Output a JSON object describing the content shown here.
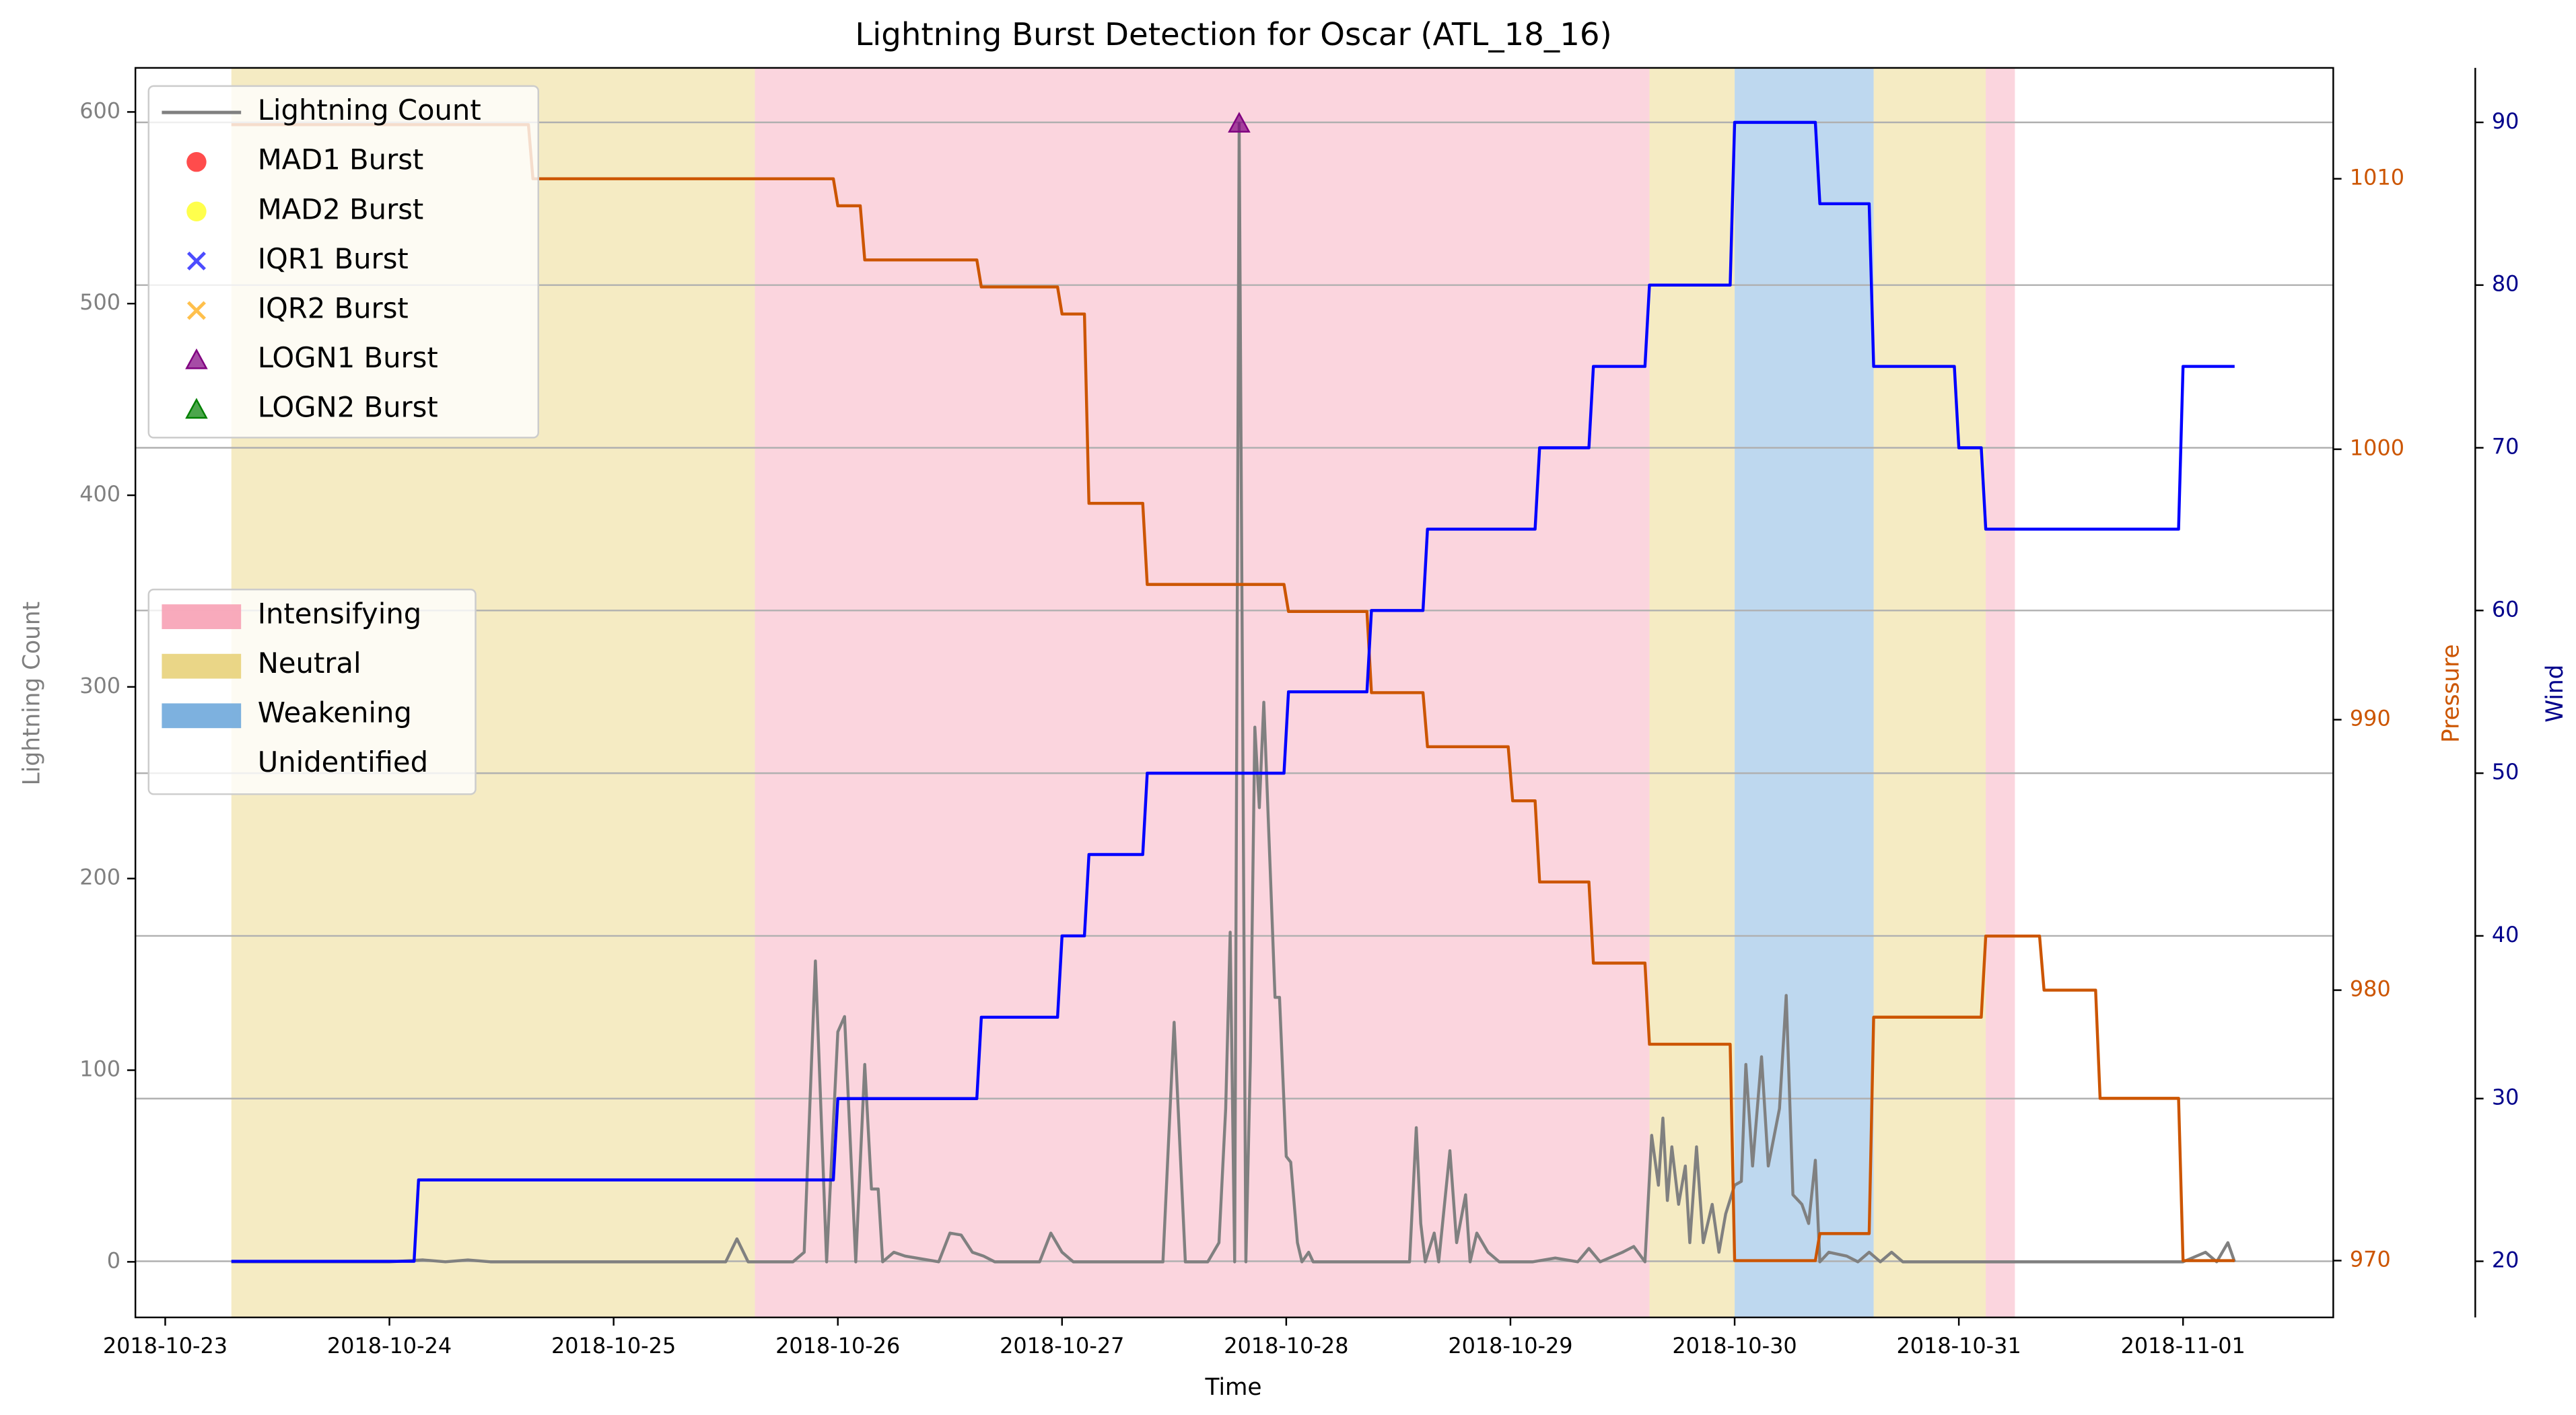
{
  "chart_data": {
    "type": "line",
    "title": "Lightning Burst Detection for Oscar (ATL_18_16)",
    "xlabel": "Time",
    "ylabel": "Lightning Count",
    "y2label": "Pressure",
    "y3label": "Wind",
    "xlim": [
      -0.133,
      9.67
    ],
    "xticks": [
      {
        "value": 0,
        "label": "2018-10-23"
      },
      {
        "value": 1,
        "label": "2018-10-24"
      },
      {
        "value": 2,
        "label": "2018-10-25"
      },
      {
        "value": 3,
        "label": "2018-10-26"
      },
      {
        "value": 4,
        "label": "2018-10-27"
      },
      {
        "value": 5,
        "label": "2018-10-28"
      },
      {
        "value": 6,
        "label": "2018-10-29"
      },
      {
        "value": 7,
        "label": "2018-10-30"
      },
      {
        "value": 8,
        "label": "2018-10-31"
      },
      {
        "value": 9,
        "label": "2018-11-01"
      }
    ],
    "ylim": [
      -29,
      623
    ],
    "yticks": [
      0,
      100,
      200,
      300,
      400,
      500,
      600
    ],
    "y2lim": [
      967.9,
      1014.1
    ],
    "y2ticks": [
      970,
      980,
      990,
      1000,
      1010
    ],
    "y3lim": [
      16.55,
      93.35
    ],
    "y3ticks": [
      20,
      30,
      40,
      50,
      60,
      70,
      80,
      90
    ],
    "grid": "y3",
    "series": [
      {
        "name": "Lightning Count",
        "color": "#808080",
        "axis": "y",
        "x": [
          0.295,
          1.0,
          1.15,
          1.25,
          1.35,
          1.45,
          2.5,
          2.55,
          2.6,
          2.8,
          2.85,
          2.9,
          2.95,
          3.0,
          3.03,
          3.08,
          3.12,
          3.15,
          3.18,
          3.2,
          3.25,
          3.3,
          3.45,
          3.5,
          3.55,
          3.6,
          3.65,
          3.7,
          3.9,
          3.95,
          4.0,
          4.05,
          4.45,
          4.5,
          4.55,
          4.65,
          4.7,
          4.73,
          4.75,
          4.77,
          4.79,
          4.82,
          4.84,
          4.86,
          4.88,
          4.9,
          4.93,
          4.95,
          4.97,
          5.0,
          5.02,
          5.05,
          5.07,
          5.1,
          5.12,
          5.55,
          5.58,
          5.6,
          5.62,
          5.66,
          5.68,
          5.73,
          5.76,
          5.8,
          5.82,
          5.85,
          5.9,
          5.95,
          6.1,
          6.2,
          6.3,
          6.35,
          6.4,
          6.5,
          6.55,
          6.6,
          6.63,
          6.66,
          6.68,
          6.7,
          6.72,
          6.75,
          6.78,
          6.8,
          6.83,
          6.86,
          6.9,
          6.93,
          6.96,
          7.0,
          7.03,
          7.05,
          7.08,
          7.12,
          7.15,
          7.2,
          7.23,
          7.26,
          7.3,
          7.33,
          7.36,
          7.38,
          7.42,
          7.5,
          7.55,
          7.6,
          7.65,
          7.7,
          7.75,
          9.0,
          9.1,
          9.15,
          9.2,
          9.23
        ],
        "values": [
          0,
          0,
          1,
          0,
          1,
          0,
          0,
          12,
          0,
          0,
          5,
          157,
          0,
          120,
          128,
          0,
          103,
          38,
          38,
          0,
          5,
          3,
          0,
          15,
          14,
          5,
          3,
          0,
          0,
          15,
          5,
          0,
          0,
          125,
          0,
          0,
          10,
          80,
          172,
          0,
          594,
          0,
          105,
          279,
          237,
          292,
          200,
          138,
          138,
          55,
          52,
          10,
          0,
          5,
          0,
          0,
          70,
          20,
          0,
          15,
          0,
          58,
          10,
          35,
          0,
          15,
          5,
          0,
          0,
          2,
          0,
          7,
          0,
          5,
          8,
          0,
          66,
          40,
          75,
          32,
          60,
          30,
          50,
          10,
          60,
          10,
          30,
          5,
          25,
          40,
          42,
          103,
          50,
          107,
          50,
          80,
          139,
          35,
          30,
          20,
          53,
          0,
          5,
          3,
          0,
          5,
          0,
          5,
          0,
          0,
          5,
          0,
          10,
          0
        ]
      },
      {
        "name": "Pressure",
        "color": "#cc5500",
        "axis": "y2",
        "x": [
          0.295,
          1.62,
          1.64,
          2.98,
          3.0,
          3.1,
          3.12,
          3.62,
          3.64,
          3.98,
          4.0,
          4.1,
          4.12,
          4.36,
          4.38,
          4.99,
          5.01,
          5.36,
          5.38,
          5.61,
          5.63,
          5.99,
          6.01,
          6.11,
          6.13,
          6.35,
          6.37,
          6.6,
          6.62,
          6.98,
          7.0,
          7.36,
          7.38,
          7.6,
          7.62,
          8.1,
          8.12,
          8.36,
          8.38,
          8.61,
          8.63,
          8.98,
          9.0,
          9.23
        ],
        "values": [
          1012,
          1012,
          1010,
          1010,
          1009,
          1009,
          1007,
          1007,
          1006,
          1006,
          1005,
          1005,
          998,
          998,
          995,
          995,
          994,
          994,
          991,
          991,
          989,
          989,
          987,
          987,
          984,
          984,
          981,
          981,
          978,
          978,
          970,
          970,
          971,
          971,
          979,
          979,
          982,
          982,
          980,
          980,
          976,
          976,
          970,
          970
        ]
      },
      {
        "name": "Wind",
        "color": "#0000ff",
        "axis": "y3",
        "x": [
          0.295,
          1.11,
          1.13,
          2.98,
          3.0,
          3.62,
          3.64,
          3.98,
          4.0,
          4.1,
          4.12,
          4.36,
          4.38,
          4.99,
          5.01,
          5.36,
          5.38,
          5.61,
          5.63,
          6.11,
          6.13,
          6.35,
          6.37,
          6.6,
          6.62,
          6.98,
          7.0,
          7.36,
          7.38,
          7.6,
          7.62,
          7.98,
          8.0,
          8.1,
          8.12,
          8.98,
          9.0,
          9.23
        ],
        "values": [
          20,
          20,
          25,
          25,
          30,
          30,
          35,
          35,
          40,
          40,
          45,
          45,
          50,
          50,
          55,
          55,
          60,
          60,
          65,
          65,
          70,
          70,
          75,
          75,
          80,
          80,
          90,
          90,
          85,
          85,
          75,
          75,
          70,
          70,
          65,
          65,
          75,
          75
        ]
      }
    ],
    "bursts": [
      {
        "name": "MAD1 Burst",
        "color": "#ff0000",
        "marker": "circle",
        "x": [],
        "values": []
      },
      {
        "name": "MAD2 Burst",
        "color": "#ffff00",
        "marker": "circle",
        "x": [],
        "values": []
      },
      {
        "name": "IQR1 Burst",
        "color": "#0000ff",
        "marker": "x",
        "x": [],
        "values": []
      },
      {
        "name": "IQR2 Burst",
        "color": "#ffa500",
        "marker": "x",
        "x": [],
        "values": []
      },
      {
        "name": "LOGN1 Burst",
        "color": "#800080",
        "marker": "triangle",
        "x": [
          4.79
        ],
        "values": [
          594
        ]
      },
      {
        "name": "LOGN2 Burst",
        "color": "#008000",
        "marker": "triangle",
        "x": [],
        "values": []
      }
    ],
    "phases": [
      {
        "name": "Intensifying",
        "color": "#f7a1b5"
      },
      {
        "name": "Neutral",
        "color": "#e8d27a"
      },
      {
        "name": "Weakening",
        "color": "#6fa8dc"
      },
      {
        "name": "Unidentified",
        "color": "none"
      }
    ],
    "regions": [
      {
        "start": 0.295,
        "end": 2.63,
        "phase": "Neutral"
      },
      {
        "start": 2.63,
        "end": 6.62,
        "phase": "Intensifying"
      },
      {
        "start": 6.62,
        "end": 7.0,
        "phase": "Neutral"
      },
      {
        "start": 7.0,
        "end": 7.62,
        "phase": "Weakening"
      },
      {
        "start": 7.62,
        "end": 8.12,
        "phase": "Neutral"
      },
      {
        "start": 8.12,
        "end": 8.25,
        "phase": "Intensifying"
      }
    ]
  }
}
